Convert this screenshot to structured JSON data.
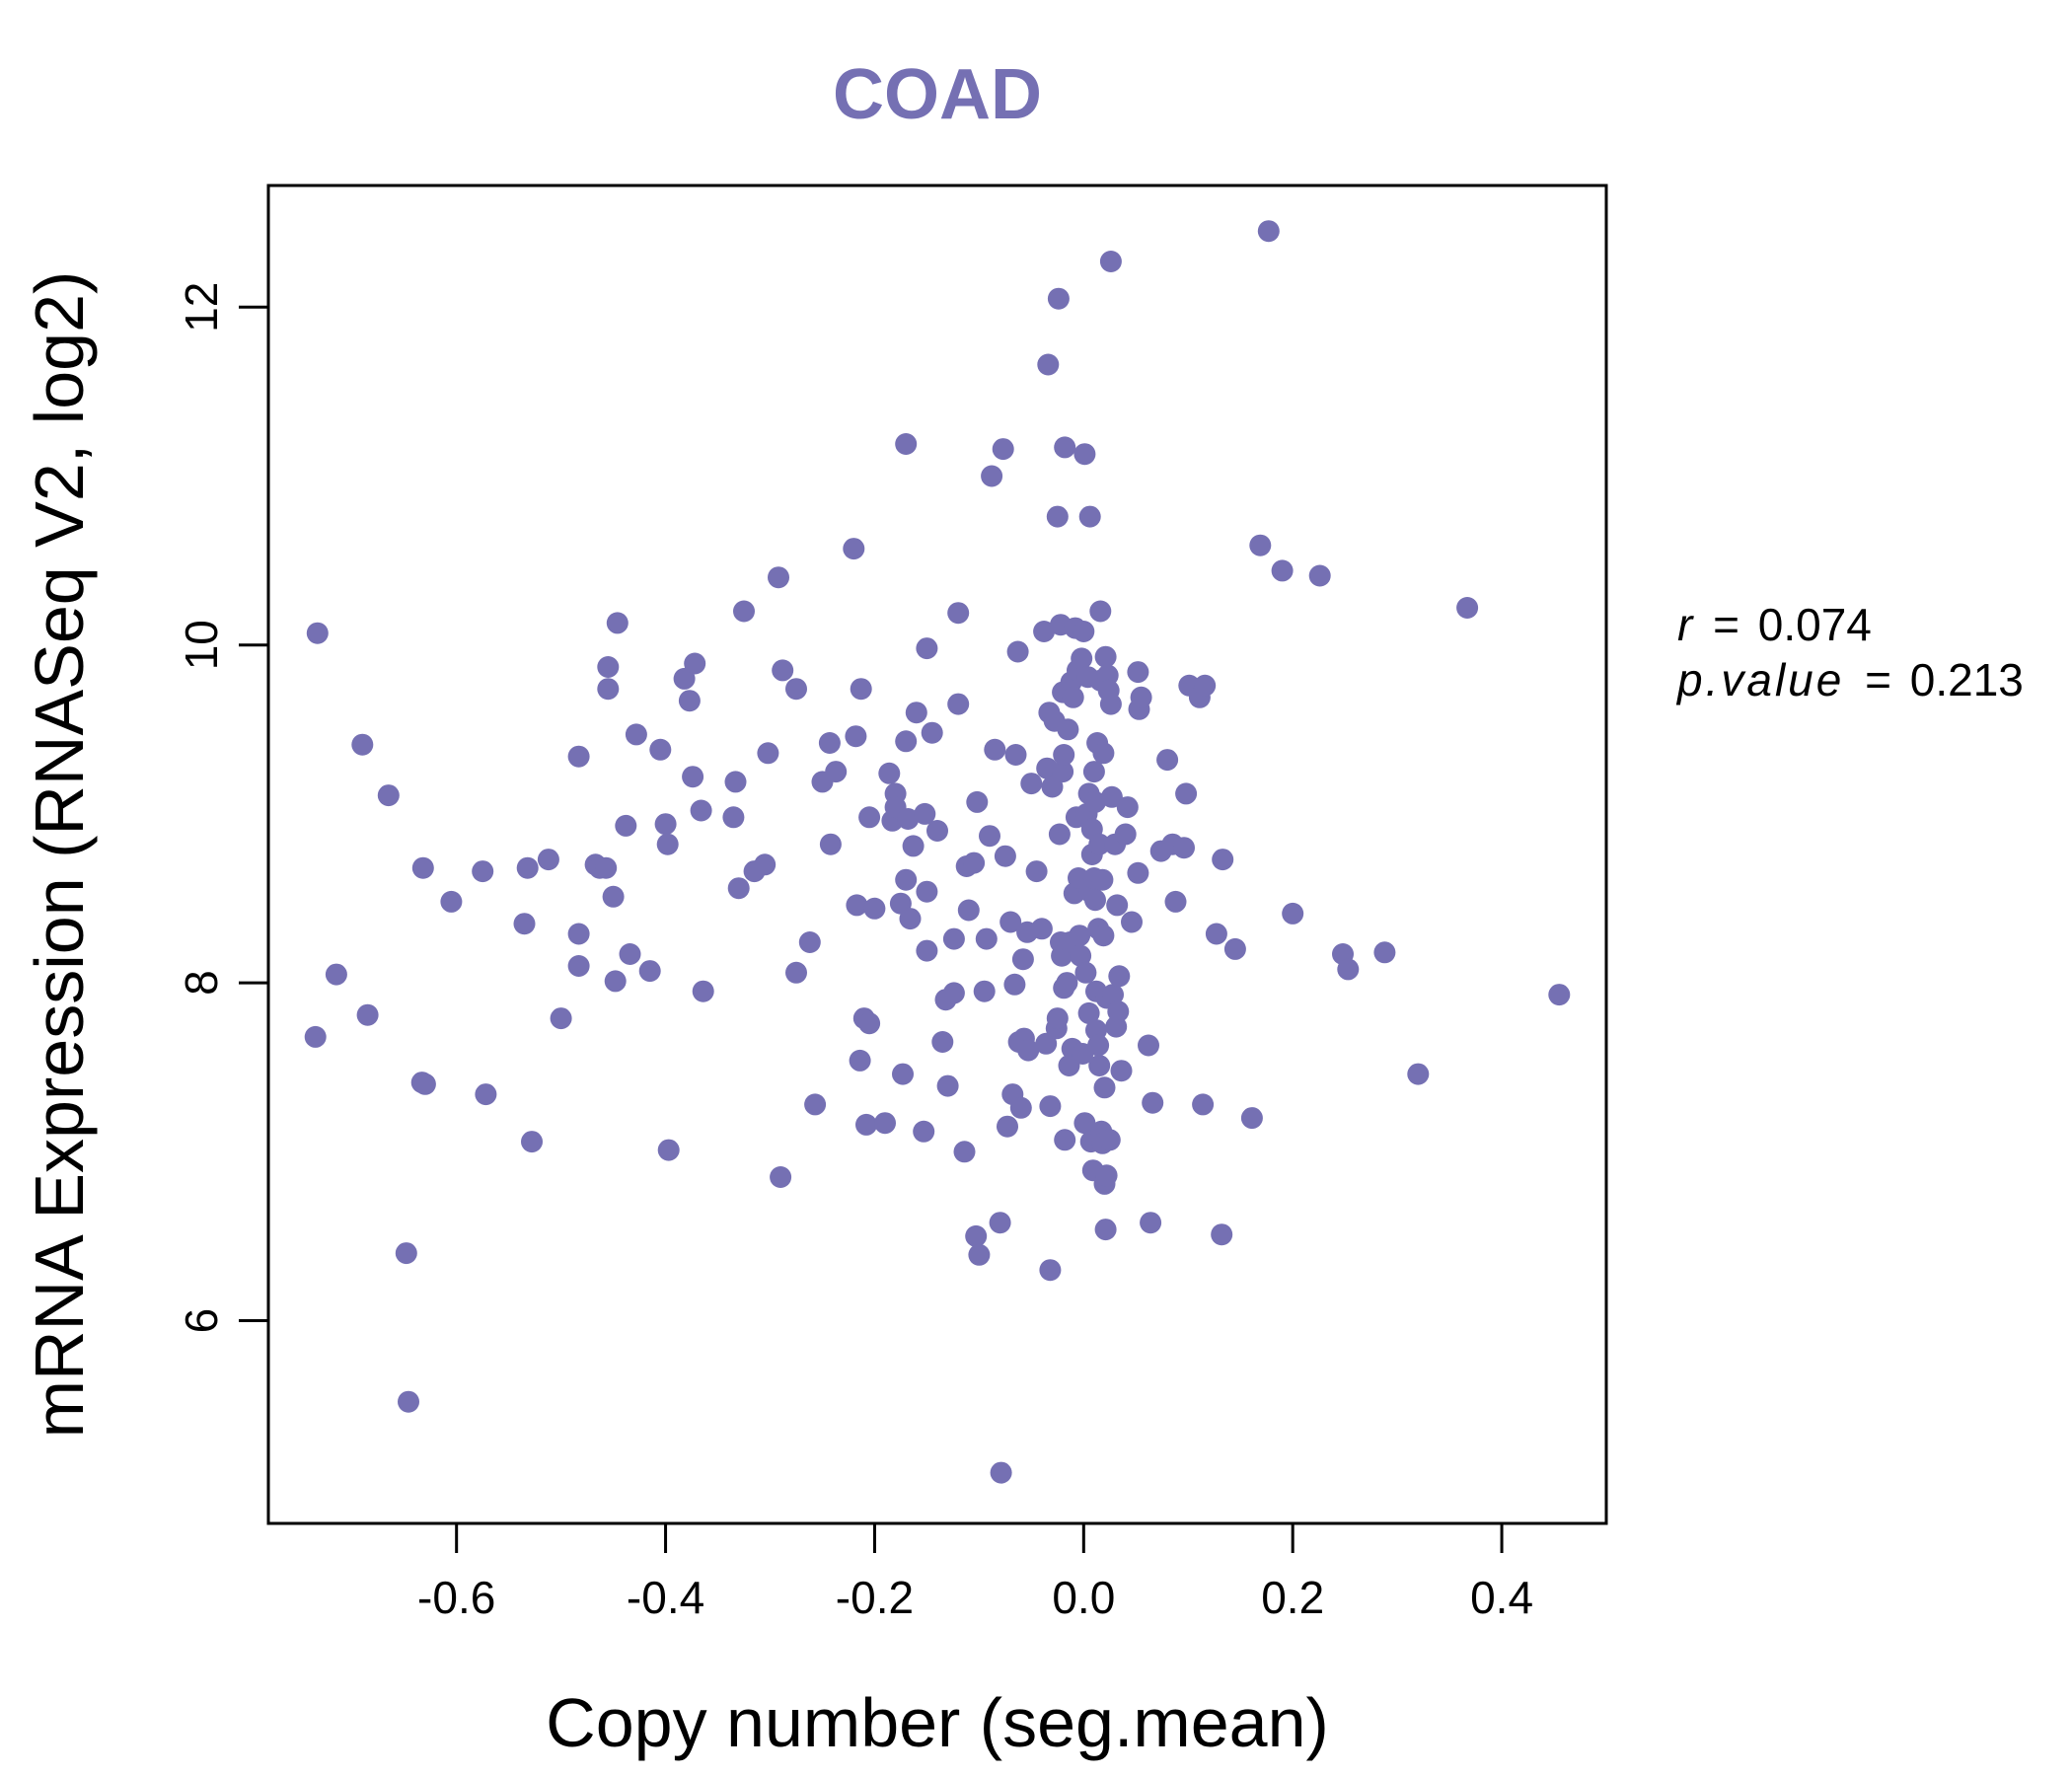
{
  "colors": {
    "point": "#7570b3",
    "title": "#7570b3",
    "axis": "#000000"
  },
  "chart_data": {
    "type": "scatter",
    "title": "COAD",
    "xlabel": "Copy number (seg.mean)",
    "ylabel": "mRNA Expression (RNASeq V2, log2)",
    "xlim": [
      -0.78,
      0.5
    ],
    "ylim": [
      4.8,
      12.72
    ],
    "xticks": [
      -0.6,
      -0.4,
      -0.2,
      0.0,
      0.2,
      0.4
    ],
    "xtick_labels": [
      "-0.6",
      "-0.4",
      "-0.2",
      "0.0",
      "0.2",
      "0.4"
    ],
    "yticks": [
      6,
      8,
      10,
      12
    ],
    "ytick_labels": [
      "6",
      "8",
      "10",
      "12"
    ],
    "stats": {
      "r_label": "r",
      "r_value": "0.074",
      "p_label": "p.value",
      "p_value": "0.213"
    },
    "points": [
      [
        -0.733,
        10.07
      ],
      [
        -0.735,
        7.68
      ],
      [
        -0.715,
        8.05
      ],
      [
        -0.69,
        9.41
      ],
      [
        -0.685,
        7.81
      ],
      [
        -0.665,
        9.11
      ],
      [
        -0.648,
        6.4
      ],
      [
        -0.646,
        5.52
      ],
      [
        -0.633,
        7.41
      ],
      [
        -0.63,
        7.4
      ],
      [
        -0.632,
        8.68
      ],
      [
        -0.605,
        8.48
      ],
      [
        -0.575,
        8.66
      ],
      [
        -0.572,
        7.34
      ],
      [
        -0.535,
        8.35
      ],
      [
        -0.532,
        8.68
      ],
      [
        -0.528,
        7.06
      ],
      [
        -0.512,
        8.73
      ],
      [
        -0.5,
        7.79
      ],
      [
        -0.483,
        9.34
      ],
      [
        -0.483,
        8.29
      ],
      [
        -0.483,
        8.1
      ],
      [
        -0.467,
        8.7
      ],
      [
        -0.463,
        8.68
      ],
      [
        -0.457,
        8.68
      ],
      [
        -0.455,
        9.87
      ],
      [
        -0.455,
        9.74
      ],
      [
        -0.45,
        8.51
      ],
      [
        -0.448,
        8.01
      ],
      [
        -0.446,
        10.13
      ],
      [
        -0.438,
        8.93
      ],
      [
        -0.434,
        8.17
      ],
      [
        -0.428,
        9.47
      ],
      [
        -0.415,
        8.07
      ],
      [
        -0.405,
        9.38
      ],
      [
        -0.4,
        8.94
      ],
      [
        -0.398,
        8.82
      ],
      [
        -0.397,
        7.01
      ],
      [
        -0.382,
        9.8
      ],
      [
        -0.377,
        9.67
      ],
      [
        -0.374,
        9.22
      ],
      [
        -0.372,
        9.89
      ],
      [
        -0.366,
        9.02
      ],
      [
        -0.364,
        7.95
      ],
      [
        -0.335,
        8.98
      ],
      [
        -0.333,
        9.19
      ],
      [
        -0.33,
        8.56
      ],
      [
        -0.325,
        10.2
      ],
      [
        -0.315,
        8.66
      ],
      [
        -0.305,
        8.7
      ],
      [
        -0.302,
        9.36
      ],
      [
        -0.292,
        10.4
      ],
      [
        -0.29,
        6.85
      ],
      [
        -0.288,
        9.85
      ],
      [
        -0.275,
        9.74
      ],
      [
        -0.275,
        8.06
      ],
      [
        -0.262,
        8.24
      ],
      [
        -0.257,
        7.28
      ],
      [
        -0.25,
        9.19
      ],
      [
        -0.243,
        9.42
      ],
      [
        -0.242,
        8.82
      ],
      [
        -0.237,
        9.25
      ],
      [
        -0.22,
        10.57
      ],
      [
        -0.218,
        9.46
      ],
      [
        -0.217,
        8.46
      ],
      [
        -0.213,
        9.74
      ],
      [
        -0.214,
        7.54
      ],
      [
        -0.21,
        7.79
      ],
      [
        -0.208,
        7.16
      ],
      [
        -0.205,
        7.76
      ],
      [
        -0.205,
        8.98
      ],
      [
        -0.2,
        8.44
      ],
      [
        -0.19,
        7.17
      ],
      [
        -0.186,
        9.24
      ],
      [
        -0.183,
        8.96
      ],
      [
        -0.18,
        9.12
      ],
      [
        -0.18,
        9.04
      ],
      [
        -0.175,
        8.47
      ],
      [
        -0.173,
        7.46
      ],
      [
        -0.17,
        11.19
      ],
      [
        -0.17,
        9.43
      ],
      [
        -0.17,
        8.61
      ],
      [
        -0.168,
        8.97
      ],
      [
        -0.166,
        8.38
      ],
      [
        -0.163,
        8.81
      ],
      [
        -0.16,
        9.6
      ],
      [
        -0.153,
        7.12
      ],
      [
        -0.152,
        9.0
      ],
      [
        -0.15,
        9.98
      ],
      [
        -0.15,
        8.54
      ],
      [
        -0.15,
        8.19
      ],
      [
        -0.145,
        9.48
      ],
      [
        -0.14,
        8.9
      ],
      [
        -0.135,
        7.65
      ],
      [
        -0.132,
        7.9
      ],
      [
        -0.13,
        7.39
      ],
      [
        -0.124,
        7.94
      ],
      [
        -0.124,
        8.26
      ],
      [
        -0.12,
        10.19
      ],
      [
        -0.12,
        9.65
      ],
      [
        -0.114,
        7.0
      ],
      [
        -0.112,
        8.69
      ],
      [
        -0.11,
        8.43
      ],
      [
        -0.105,
        8.71
      ],
      [
        -0.103,
        6.5
      ],
      [
        -0.102,
        9.07
      ],
      [
        -0.1,
        6.39
      ],
      [
        -0.095,
        7.95
      ],
      [
        -0.093,
        8.26
      ],
      [
        -0.09,
        8.87
      ],
      [
        -0.088,
        11.0
      ],
      [
        -0.085,
        9.38
      ],
      [
        -0.08,
        6.58
      ],
      [
        -0.079,
        5.1
      ],
      [
        -0.077,
        11.16
      ],
      [
        -0.075,
        8.75
      ],
      [
        -0.073,
        7.15
      ],
      [
        -0.07,
        8.36
      ],
      [
        -0.068,
        7.34
      ],
      [
        -0.066,
        7.99
      ],
      [
        -0.065,
        9.35
      ],
      [
        -0.063,
        9.96
      ],
      [
        -0.062,
        7.65
      ],
      [
        -0.06,
        7.26
      ],
      [
        -0.058,
        8.14
      ],
      [
        -0.057,
        7.67
      ],
      [
        -0.054,
        8.3
      ],
      [
        -0.053,
        7.6
      ],
      [
        -0.05,
        9.18
      ],
      [
        -0.045,
        8.66
      ],
      [
        -0.04,
        8.32
      ],
      [
        -0.038,
        10.08
      ],
      [
        -0.036,
        7.64
      ],
      [
        -0.035,
        9.27
      ],
      [
        -0.034,
        11.66
      ],
      [
        -0.033,
        9.6
      ],
      [
        -0.032,
        7.27
      ],
      [
        -0.032,
        6.3
      ],
      [
        -0.03,
        9.16
      ],
      [
        -0.028,
        9.55
      ],
      [
        -0.026,
        7.73
      ],
      [
        -0.025,
        10.76
      ],
      [
        -0.025,
        7.79
      ],
      [
        -0.024,
        12.05
      ],
      [
        -0.023,
        8.88
      ],
      [
        -0.022,
        10.12
      ],
      [
        -0.022,
        8.24
      ],
      [
        -0.021,
        8.16
      ],
      [
        -0.02,
        9.72
      ],
      [
        -0.02,
        9.25
      ],
      [
        -0.019,
        7.97
      ],
      [
        -0.019,
        9.35
      ],
      [
        -0.018,
        11.17
      ],
      [
        -0.018,
        7.07
      ],
      [
        -0.016,
        8.0
      ],
      [
        -0.015,
        9.5
      ],
      [
        -0.014,
        7.51
      ],
      [
        -0.013,
        8.24
      ],
      [
        -0.012,
        9.78
      ],
      [
        -0.011,
        7.61
      ],
      [
        -0.01,
        9.69
      ],
      [
        -0.009,
        8.53
      ],
      [
        -0.008,
        10.1
      ],
      [
        -0.007,
        8.98
      ],
      [
        -0.006,
        9.85
      ],
      [
        -0.005,
        8.62
      ],
      [
        -0.004,
        8.28
      ],
      [
        -0.003,
        8.16
      ],
      [
        -0.002,
        9.92
      ],
      [
        -0.001,
        7.58
      ],
      [
        0.0,
        10.08
      ],
      [
        0.001,
        11.13
      ],
      [
        0.001,
        7.17
      ],
      [
        0.002,
        8.06
      ],
      [
        0.003,
        9.0
      ],
      [
        0.004,
        9.81
      ],
      [
        0.005,
        7.82
      ],
      [
        0.005,
        9.12
      ],
      [
        0.006,
        10.76
      ],
      [
        0.006,
        8.54
      ],
      [
        0.007,
        7.06
      ],
      [
        0.008,
        8.91
      ],
      [
        0.008,
        8.76
      ],
      [
        0.009,
        6.89
      ],
      [
        0.01,
        9.25
      ],
      [
        0.01,
        8.62
      ],
      [
        0.011,
        9.07
      ],
      [
        0.011,
        8.49
      ],
      [
        0.012,
        7.72
      ],
      [
        0.012,
        7.95
      ],
      [
        0.013,
        9.42
      ],
      [
        0.014,
        8.32
      ],
      [
        0.014,
        7.63
      ],
      [
        0.015,
        8.82
      ],
      [
        0.015,
        7.51
      ],
      [
        0.016,
        9.79
      ],
      [
        0.016,
        10.2
      ],
      [
        0.017,
        7.12
      ],
      [
        0.018,
        8.61
      ],
      [
        0.018,
        7.05
      ],
      [
        0.019,
        8.28
      ],
      [
        0.019,
        9.36
      ],
      [
        0.02,
        7.38
      ],
      [
        0.02,
        6.81
      ],
      [
        0.021,
        6.54
      ],
      [
        0.021,
        9.93
      ],
      [
        0.022,
        7.91
      ],
      [
        0.022,
        6.86
      ],
      [
        0.023,
        9.82
      ],
      [
        0.024,
        9.73
      ],
      [
        0.025,
        7.07
      ],
      [
        0.026,
        9.65
      ],
      [
        0.026,
        12.27
      ],
      [
        0.027,
        9.1
      ],
      [
        0.028,
        7.93
      ],
      [
        0.03,
        8.82
      ],
      [
        0.031,
        7.74
      ],
      [
        0.032,
        8.46
      ],
      [
        0.033,
        7.83
      ],
      [
        0.034,
        8.04
      ],
      [
        0.036,
        7.48
      ],
      [
        0.04,
        8.88
      ],
      [
        0.042,
        9.04
      ],
      [
        0.046,
        8.36
      ],
      [
        0.052,
        8.65
      ],
      [
        0.052,
        9.84
      ],
      [
        0.053,
        9.62
      ],
      [
        0.055,
        9.69
      ],
      [
        0.062,
        7.63
      ],
      [
        0.064,
        6.58
      ],
      [
        0.066,
        7.29
      ],
      [
        0.074,
        8.78
      ],
      [
        0.08,
        9.32
      ],
      [
        0.085,
        8.82
      ],
      [
        0.088,
        8.48
      ],
      [
        0.096,
        8.8
      ],
      [
        0.098,
        9.12
      ],
      [
        0.101,
        9.76
      ],
      [
        0.111,
        9.69
      ],
      [
        0.114,
        7.28
      ],
      [
        0.116,
        9.76
      ],
      [
        0.127,
        8.29
      ],
      [
        0.132,
        6.51
      ],
      [
        0.133,
        8.73
      ],
      [
        0.145,
        8.2
      ],
      [
        0.161,
        7.2
      ],
      [
        0.169,
        10.59
      ],
      [
        0.177,
        12.45
      ],
      [
        0.19,
        10.44
      ],
      [
        0.2,
        8.41
      ],
      [
        0.226,
        10.41
      ],
      [
        0.248,
        8.17
      ],
      [
        0.253,
        8.08
      ],
      [
        0.288,
        8.18
      ],
      [
        0.32,
        7.46
      ],
      [
        0.367,
        10.22
      ],
      [
        0.455,
        7.93
      ]
    ]
  }
}
